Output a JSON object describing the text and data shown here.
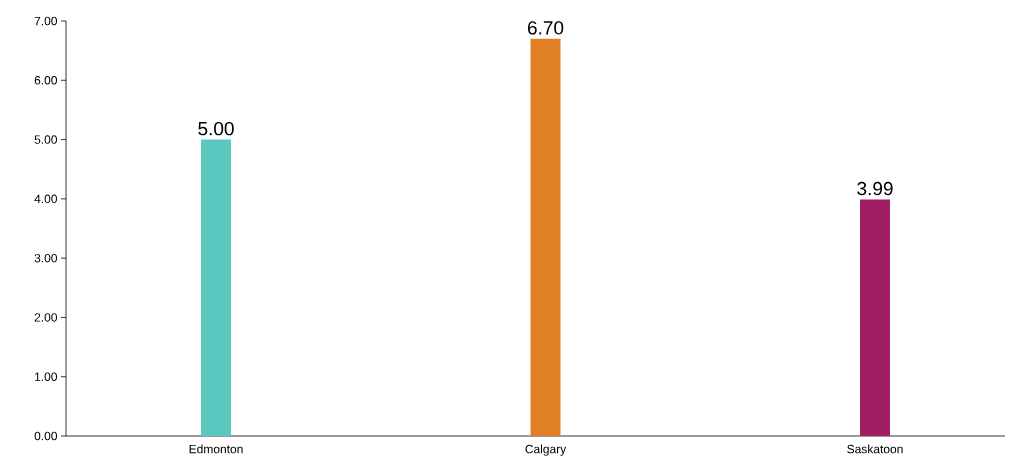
{
  "chart_data": {
    "type": "bar",
    "categories": [
      "Edmonton",
      "Calgary",
      "Saskatoon"
    ],
    "values": [
      5.0,
      6.7,
      3.99
    ],
    "colors": [
      "#5bc8c0",
      "#e07f24",
      "#a01f62"
    ],
    "value_labels": [
      "5.00",
      "6.70",
      "3.99"
    ],
    "ylim": [
      0,
      7
    ],
    "yticks": [
      {
        "value": 0,
        "label": "0.00"
      },
      {
        "value": 1,
        "label": "1.00"
      },
      {
        "value": 2,
        "label": "2.00"
      },
      {
        "value": 3,
        "label": "3.00"
      },
      {
        "value": 4,
        "label": "4.00"
      },
      {
        "value": 5,
        "label": "5.00"
      },
      {
        "value": 6,
        "label": "6.00"
      },
      {
        "value": 7,
        "label": "7.00"
      }
    ]
  }
}
